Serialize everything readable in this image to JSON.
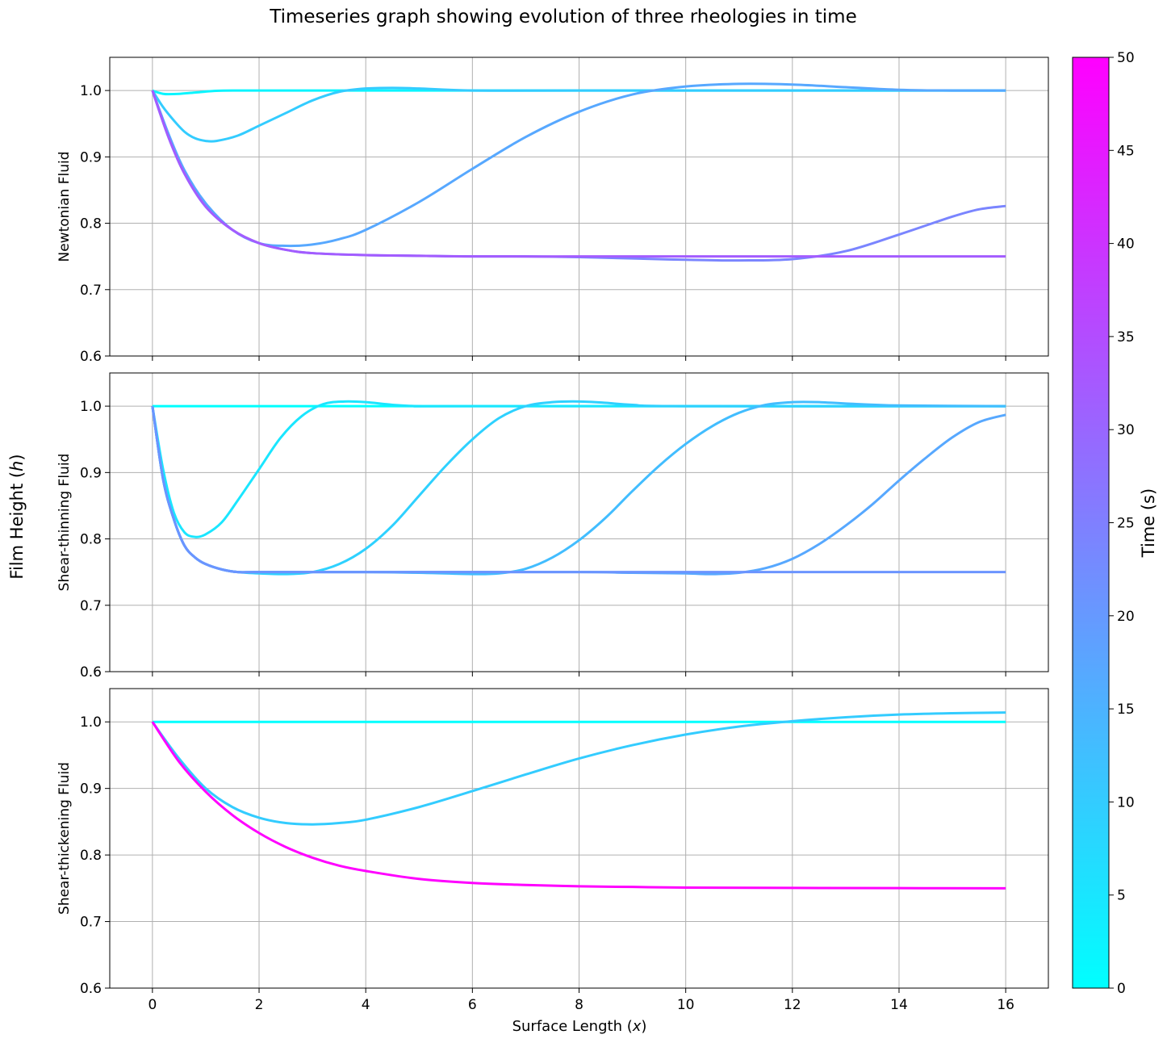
{
  "chart_data": {
    "type": "line",
    "title": "Timeseries graph showing evolution of three rheologies in time",
    "shared_ylabel": "Film Height (h)",
    "xlabel": "Surface Length (x)",
    "xlim": [
      -0.8,
      16.8
    ],
    "xticks": [
      0,
      2,
      4,
      6,
      8,
      10,
      12,
      14,
      16
    ],
    "ylim": [
      0.6,
      1.05
    ],
    "yticks": [
      0.6,
      0.7,
      0.8,
      0.9,
      1.0
    ],
    "grid": true,
    "colorbar": {
      "label": "Time (s)",
      "range": [
        0,
        50
      ],
      "ticks": [
        0,
        5,
        10,
        15,
        20,
        25,
        30,
        35,
        40,
        45,
        50
      ],
      "colormap": "cool",
      "color_start": "#00ffff",
      "color_end": "#ff00ff"
    },
    "panels": [
      {
        "ylabel": "Newtonian Fluid",
        "series": [
          {
            "time": 2,
            "x": [
              0,
              0.1,
              0.2,
              0.3,
              0.5,
              0.8,
              1.2,
              1.6,
              2,
              3,
              16
            ],
            "y": [
              1.0,
              0.997,
              0.995,
              0.9945,
              0.995,
              0.997,
              0.9995,
              1.0,
              1.0,
              1.0,
              1.0
            ]
          },
          {
            "time": 10,
            "x": [
              0,
              0.2,
              0.4,
              0.6,
              0.8,
              1.0,
              1.2,
              1.6,
              2.0,
              2.5,
              3.0,
              3.5,
              4.0,
              4.5,
              5.0,
              6.0,
              8,
              16
            ],
            "y": [
              1.0,
              0.975,
              0.955,
              0.938,
              0.928,
              0.924,
              0.924,
              0.932,
              0.947,
              0.966,
              0.985,
              0.998,
              1.003,
              1.004,
              1.003,
              1.0,
              1.0,
              1.0
            ]
          },
          {
            "time": 17,
            "x": [
              0,
              0.3,
              0.6,
              1.0,
              1.5,
              2.0,
              2.5,
              3.0,
              3.5,
              4.0,
              5,
              6,
              7,
              8,
              9,
              10,
              11,
              12,
              13,
              14,
              15,
              16
            ],
            "y": [
              1.0,
              0.935,
              0.88,
              0.83,
              0.79,
              0.77,
              0.766,
              0.768,
              0.776,
              0.79,
              0.832,
              0.882,
              0.93,
              0.968,
              0.994,
              1.006,
              1.01,
              1.009,
              1.005,
              1.001,
              1.0,
              1.0
            ]
          },
          {
            "time": 24,
            "x": [
              0,
              0.3,
              0.6,
              1.0,
              1.5,
              2.0,
              2.5,
              3.0,
              4.0,
              5,
              6,
              7,
              8,
              9,
              10,
              11,
              12,
              13,
              14,
              15,
              15.5,
              16
            ],
            "y": [
              1.0,
              0.93,
              0.875,
              0.825,
              0.79,
              0.77,
              0.76,
              0.755,
              0.752,
              0.751,
              0.75,
              0.75,
              0.749,
              0.747,
              0.745,
              0.744,
              0.746,
              0.758,
              0.783,
              0.81,
              0.821,
              0.826
            ]
          },
          {
            "time": 32,
            "x": [
              0,
              0.3,
              0.6,
              1.0,
              1.5,
              2.0,
              2.5,
              3.0,
              4.0,
              5,
              6,
              8,
              10,
              12,
              14,
              16
            ],
            "y": [
              1.0,
              0.93,
              0.875,
              0.825,
              0.79,
              0.77,
              0.76,
              0.755,
              0.752,
              0.751,
              0.75,
              0.75,
              0.75,
              0.75,
              0.75,
              0.75
            ]
          }
        ]
      },
      {
        "ylabel": "Shear-thinning Fluid",
        "series": [
          {
            "time": 0,
            "x": [
              0,
              16
            ],
            "y": [
              1.0,
              1.0
            ]
          },
          {
            "time": 5,
            "x": [
              0,
              0.2,
              0.4,
              0.6,
              0.8,
              1.0,
              1.3,
              1.6,
              2.0,
              2.4,
              2.8,
              3.2,
              3.6,
              4.0,
              4.5,
              5.0,
              6,
              16
            ],
            "y": [
              1.0,
              0.905,
              0.84,
              0.81,
              0.803,
              0.807,
              0.825,
              0.858,
              0.905,
              0.952,
              0.985,
              1.003,
              1.007,
              1.006,
              1.002,
              1.0,
              1.0,
              1.0
            ]
          },
          {
            "time": 9,
            "x": [
              0,
              0.2,
              0.4,
              0.6,
              0.8,
              1.0,
              1.3,
              1.6,
              2.0,
              2.5,
              3.0,
              3.5,
              4.0,
              4.5,
              5.0,
              5.5,
              6.0,
              6.5,
              7.0,
              7.5,
              8.0,
              8.5,
              9.0,
              10,
              16
            ],
            "y": [
              1.0,
              0.89,
              0.83,
              0.79,
              0.772,
              0.762,
              0.754,
              0.75,
              0.748,
              0.747,
              0.75,
              0.762,
              0.785,
              0.82,
              0.865,
              0.91,
              0.95,
              0.982,
              1.0,
              1.006,
              1.007,
              1.005,
              1.002,
              1.0,
              1.0
            ]
          },
          {
            "time": 13,
            "x": [
              0,
              0.2,
              0.4,
              0.6,
              0.8,
              1.0,
              1.3,
              1.6,
              2.0,
              3,
              4,
              5,
              6,
              6.5,
              7.0,
              7.5,
              8.0,
              8.5,
              9.0,
              9.5,
              10.0,
              10.5,
              11.0,
              11.5,
              12.0,
              12.5,
              13.0,
              14,
              16
            ],
            "y": [
              1.0,
              0.89,
              0.83,
              0.79,
              0.772,
              0.762,
              0.754,
              0.75,
              0.75,
              0.75,
              0.75,
              0.749,
              0.747,
              0.748,
              0.755,
              0.772,
              0.798,
              0.832,
              0.872,
              0.91,
              0.943,
              0.97,
              0.99,
              1.002,
              1.006,
              1.006,
              1.004,
              1.001,
              1.0
            ]
          },
          {
            "time": 17,
            "x": [
              0,
              0.2,
              0.4,
              0.6,
              0.8,
              1.0,
              1.3,
              1.6,
              2.0,
              4,
              6,
              8,
              9,
              10,
              10.5,
              11.0,
              11.5,
              12.0,
              12.5,
              13.0,
              13.5,
              14.0,
              14.5,
              15.0,
              15.5,
              16.0
            ],
            "y": [
              1.0,
              0.89,
              0.83,
              0.79,
              0.772,
              0.762,
              0.754,
              0.75,
              0.75,
              0.75,
              0.75,
              0.75,
              0.749,
              0.748,
              0.747,
              0.749,
              0.756,
              0.77,
              0.792,
              0.82,
              0.852,
              0.888,
              0.922,
              0.953,
              0.976,
              0.987
            ]
          },
          {
            "time": 21,
            "x": [
              0,
              0.2,
              0.4,
              0.6,
              0.8,
              1.0,
              1.3,
              1.6,
              2.0,
              4,
              8,
              12,
              16
            ],
            "y": [
              1.0,
              0.89,
              0.83,
              0.79,
              0.772,
              0.762,
              0.754,
              0.75,
              0.75,
              0.75,
              0.75,
              0.75,
              0.75
            ]
          }
        ]
      },
      {
        "ylabel": "Shear-thickening Fluid",
        "series": [
          {
            "time": 0,
            "x": [
              0,
              16
            ],
            "y": [
              1.0,
              1.0
            ]
          },
          {
            "time": 10,
            "x": [
              0,
              0.5,
              1.0,
              1.5,
              2.0,
              2.5,
              3.0,
              3.5,
              4.0,
              5,
              6,
              7,
              8,
              9,
              10,
              11,
              12,
              13,
              14,
              15,
              16
            ],
            "y": [
              1.0,
              0.945,
              0.9,
              0.872,
              0.856,
              0.848,
              0.846,
              0.848,
              0.853,
              0.872,
              0.896,
              0.921,
              0.945,
              0.965,
              0.981,
              0.993,
              1.001,
              1.007,
              1.011,
              1.013,
              1.014
            ]
          },
          {
            "time": 50,
            "x": [
              0,
              0.5,
              1.0,
              1.5,
              2.0,
              2.5,
              3.0,
              3.5,
              4.0,
              5,
              6,
              7,
              8,
              9,
              10,
              12,
              14,
              16
            ],
            "y": [
              1.0,
              0.94,
              0.895,
              0.86,
              0.833,
              0.812,
              0.796,
              0.784,
              0.776,
              0.764,
              0.758,
              0.755,
              0.753,
              0.752,
              0.751,
              0.7505,
              0.7502,
              0.75
            ]
          }
        ]
      }
    ]
  }
}
